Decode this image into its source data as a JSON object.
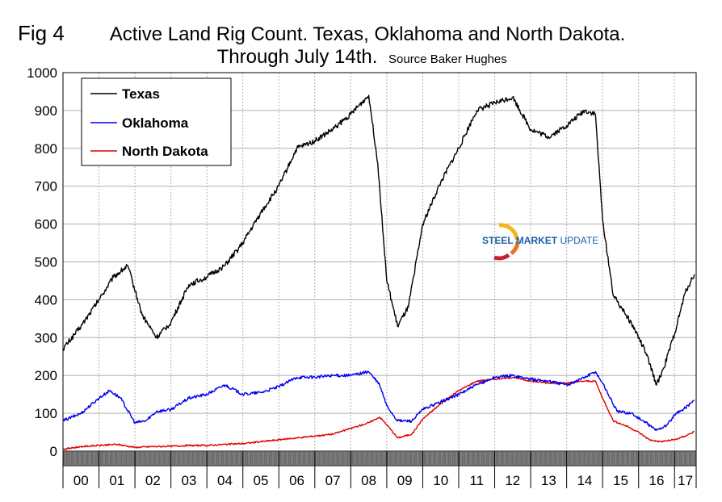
{
  "header": {
    "fig_label": "Fig 4",
    "title_line1": "Active Land Rig Count. Texas, Oklahoma and North Dakota.",
    "title_line2": "Through July 14th.",
    "source": "Source Baker Hughes"
  },
  "logo": {
    "strong": "STEEL MARKET",
    "light": " UPDATE",
    "text_color": "#1b5fa8",
    "arc_colors": [
      "#f7b31c",
      "#e8731e",
      "#c8202f"
    ]
  },
  "chart_data": {
    "type": "line",
    "title": "Active Land Rig Count. Texas, Oklahoma and North Dakota. Through July 14th.",
    "xlabel": "",
    "ylabel": "",
    "ylim": [
      0,
      1000
    ],
    "xlim": [
      2000.0,
      2017.6
    ],
    "yticks": [
      0,
      100,
      200,
      300,
      400,
      500,
      600,
      700,
      800,
      900,
      1000
    ],
    "year_labels": [
      "00",
      "01",
      "02",
      "03",
      "04",
      "05",
      "06",
      "07",
      "08",
      "09",
      "10",
      "11",
      "12",
      "13",
      "14",
      "15",
      "16",
      "17"
    ],
    "grid": true,
    "legend_position": "top-left",
    "series": [
      {
        "name": "Texas",
        "color": "#000000",
        "x": [
          2000.0,
          2000.5,
          2001.0,
          2001.4,
          2001.8,
          2002.2,
          2002.6,
          2003.0,
          2003.5,
          2004.0,
          2004.5,
          2005.0,
          2005.5,
          2006.0,
          2006.5,
          2007.0,
          2007.5,
          2008.0,
          2008.5,
          2008.75,
          2009.0,
          2009.3,
          2009.6,
          2010.0,
          2010.5,
          2011.0,
          2011.5,
          2012.0,
          2012.5,
          2013.0,
          2013.5,
          2014.0,
          2014.5,
          2014.8,
          2015.0,
          2015.3,
          2015.6,
          2015.9,
          2016.2,
          2016.5,
          2016.7,
          2017.0,
          2017.3,
          2017.55
        ],
        "y": [
          270,
          330,
          400,
          460,
          490,
          360,
          300,
          340,
          440,
          460,
          490,
          550,
          630,
          700,
          800,
          820,
          850,
          890,
          940,
          760,
          450,
          330,
          380,
          600,
          710,
          800,
          900,
          920,
          935,
          850,
          830,
          860,
          900,
          890,
          610,
          410,
          370,
          320,
          260,
          175,
          220,
          310,
          420,
          467
        ]
      },
      {
        "name": "Oklahoma",
        "color": "#0000ee",
        "x": [
          2000.0,
          2000.5,
          2001.0,
          2001.3,
          2001.6,
          2002.0,
          2002.3,
          2002.6,
          2003.0,
          2003.5,
          2004.0,
          2004.5,
          2005.0,
          2005.5,
          2006.0,
          2006.5,
          2007.0,
          2007.5,
          2008.0,
          2008.5,
          2008.8,
          2009.0,
          2009.3,
          2009.7,
          2010.0,
          2010.5,
          2011.0,
          2011.5,
          2012.0,
          2012.5,
          2013.0,
          2013.5,
          2014.0,
          2014.5,
          2014.8,
          2015.0,
          2015.4,
          2015.8,
          2016.2,
          2016.5,
          2016.8,
          2017.0,
          2017.3,
          2017.55
        ],
        "y": [
          80,
          100,
          140,
          160,
          140,
          75,
          80,
          105,
          110,
          140,
          150,
          175,
          150,
          155,
          170,
          195,
          195,
          200,
          200,
          210,
          175,
          120,
          80,
          80,
          110,
          130,
          150,
          175,
          195,
          200,
          190,
          185,
          175,
          195,
          210,
          180,
          105,
          100,
          75,
          55,
          70,
          95,
          115,
          135
        ]
      },
      {
        "name": "North Dakota",
        "color": "#e00000",
        "x": [
          2000.0,
          2000.5,
          2001.0,
          2001.5,
          2002.0,
          2002.5,
          2003.0,
          2003.5,
          2004.0,
          2004.5,
          2005.0,
          2005.5,
          2006.0,
          2006.5,
          2007.0,
          2007.5,
          2008.0,
          2008.5,
          2008.8,
          2009.0,
          2009.3,
          2009.7,
          2010.0,
          2010.5,
          2011.0,
          2011.5,
          2012.0,
          2012.5,
          2013.0,
          2013.5,
          2014.0,
          2014.5,
          2014.8,
          2015.0,
          2015.3,
          2015.7,
          2016.0,
          2016.3,
          2016.6,
          2017.0,
          2017.3,
          2017.55
        ],
        "y": [
          5,
          12,
          15,
          18,
          10,
          12,
          13,
          15,
          15,
          18,
          20,
          25,
          30,
          35,
          40,
          45,
          60,
          75,
          90,
          70,
          35,
          45,
          85,
          125,
          160,
          185,
          190,
          195,
          185,
          180,
          180,
          185,
          185,
          140,
          80,
          65,
          50,
          30,
          25,
          30,
          40,
          52
        ]
      }
    ]
  }
}
